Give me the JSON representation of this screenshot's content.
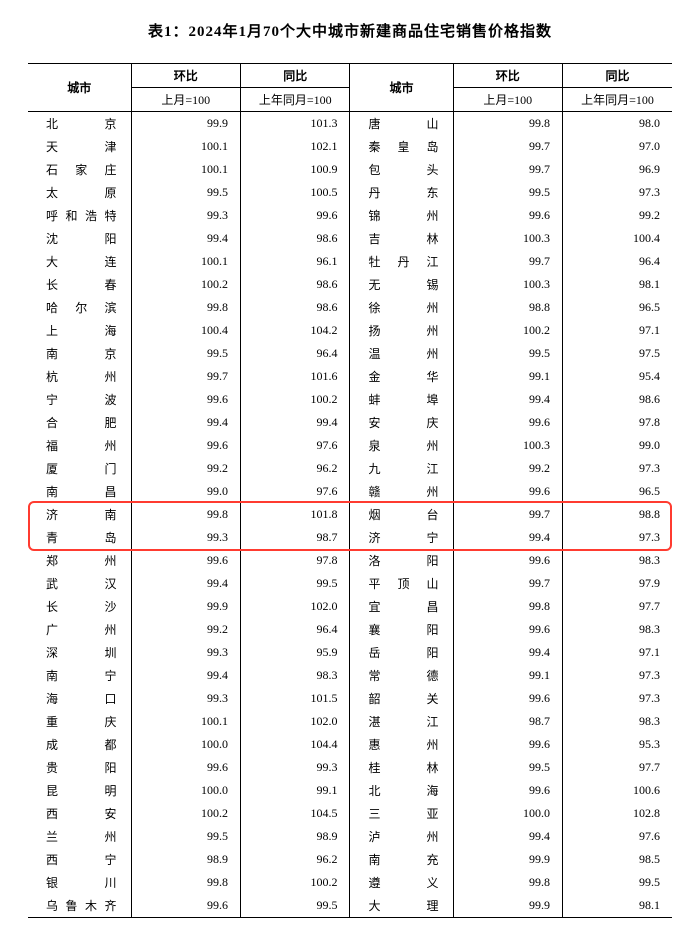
{
  "title": "表1：2024年1月70个大中城市新建商品住宅销售价格指数",
  "headers": {
    "city": "城市",
    "mom": "环比",
    "yoy": "同比",
    "mom_sub": "上月=100",
    "yoy_sub": "上年同月=100"
  },
  "highlight_rows": {
    "start": 17,
    "count": 2
  },
  "rows": [
    {
      "c1": "北　　京",
      "m1": "99.9",
      "y1": "101.3",
      "c2": "唐　　山",
      "m2": "99.8",
      "y2": "98.0"
    },
    {
      "c1": "天　　津",
      "m1": "100.1",
      "y1": "102.1",
      "c2": "秦 皇 岛",
      "m2": "99.7",
      "y2": "97.0"
    },
    {
      "c1": "石 家 庄",
      "m1": "100.1",
      "y1": "100.9",
      "c2": "包　　头",
      "m2": "99.7",
      "y2": "96.9"
    },
    {
      "c1": "太　　原",
      "m1": "99.5",
      "y1": "100.5",
      "c2": "丹　　东",
      "m2": "99.5",
      "y2": "97.3"
    },
    {
      "c1": "呼和浩特",
      "m1": "99.3",
      "y1": "99.6",
      "c2": "锦　　州",
      "m2": "99.6",
      "y2": "99.2"
    },
    {
      "c1": "沈　　阳",
      "m1": "99.4",
      "y1": "98.6",
      "c2": "吉　　林",
      "m2": "100.3",
      "y2": "100.4"
    },
    {
      "c1": "大　　连",
      "m1": "100.1",
      "y1": "96.1",
      "c2": "牡 丹 江",
      "m2": "99.7",
      "y2": "96.4"
    },
    {
      "c1": "长　　春",
      "m1": "100.2",
      "y1": "98.6",
      "c2": "无　　锡",
      "m2": "100.3",
      "y2": "98.1"
    },
    {
      "c1": "哈 尔 滨",
      "m1": "99.8",
      "y1": "98.6",
      "c2": "徐　　州",
      "m2": "98.8",
      "y2": "96.5"
    },
    {
      "c1": "上　　海",
      "m1": "100.4",
      "y1": "104.2",
      "c2": "扬　　州",
      "m2": "100.2",
      "y2": "97.1"
    },
    {
      "c1": "南　　京",
      "m1": "99.5",
      "y1": "96.4",
      "c2": "温　　州",
      "m2": "99.5",
      "y2": "97.5"
    },
    {
      "c1": "杭　　州",
      "m1": "99.7",
      "y1": "101.6",
      "c2": "金　　华",
      "m2": "99.1",
      "y2": "95.4"
    },
    {
      "c1": "宁　　波",
      "m1": "99.6",
      "y1": "100.2",
      "c2": "蚌　　埠",
      "m2": "99.4",
      "y2": "98.6"
    },
    {
      "c1": "合　　肥",
      "m1": "99.4",
      "y1": "99.4",
      "c2": "安　　庆",
      "m2": "99.6",
      "y2": "97.8"
    },
    {
      "c1": "福　　州",
      "m1": "99.6",
      "y1": "97.6",
      "c2": "泉　　州",
      "m2": "100.3",
      "y2": "99.0"
    },
    {
      "c1": "厦　　门",
      "m1": "99.2",
      "y1": "96.2",
      "c2": "九　　江",
      "m2": "99.2",
      "y2": "97.3"
    },
    {
      "c1": "南　　昌",
      "m1": "99.0",
      "y1": "97.6",
      "c2": "赣　　州",
      "m2": "99.6",
      "y2": "96.5"
    },
    {
      "c1": "济　　南",
      "m1": "99.8",
      "y1": "101.8",
      "c2": "烟　　台",
      "m2": "99.7",
      "y2": "98.8"
    },
    {
      "c1": "青　　岛",
      "m1": "99.3",
      "y1": "98.7",
      "c2": "济　　宁",
      "m2": "99.4",
      "y2": "97.3"
    },
    {
      "c1": "郑　　州",
      "m1": "99.6",
      "y1": "97.8",
      "c2": "洛　　阳",
      "m2": "99.6",
      "y2": "98.3"
    },
    {
      "c1": "武　　汉",
      "m1": "99.4",
      "y1": "99.5",
      "c2": "平 顶 山",
      "m2": "99.7",
      "y2": "97.9"
    },
    {
      "c1": "长　　沙",
      "m1": "99.9",
      "y1": "102.0",
      "c2": "宜　　昌",
      "m2": "99.8",
      "y2": "97.7"
    },
    {
      "c1": "广　　州",
      "m1": "99.2",
      "y1": "96.4",
      "c2": "襄　　阳",
      "m2": "99.6",
      "y2": "98.3"
    },
    {
      "c1": "深　　圳",
      "m1": "99.3",
      "y1": "95.9",
      "c2": "岳　　阳",
      "m2": "99.4",
      "y2": "97.1"
    },
    {
      "c1": "南　　宁",
      "m1": "99.4",
      "y1": "98.3",
      "c2": "常　　德",
      "m2": "99.1",
      "y2": "97.3"
    },
    {
      "c1": "海　　口",
      "m1": "99.3",
      "y1": "101.5",
      "c2": "韶　　关",
      "m2": "99.6",
      "y2": "97.3"
    },
    {
      "c1": "重　　庆",
      "m1": "100.1",
      "y1": "102.0",
      "c2": "湛　　江",
      "m2": "98.7",
      "y2": "98.3"
    },
    {
      "c1": "成　　都",
      "m1": "100.0",
      "y1": "104.4",
      "c2": "惠　　州",
      "m2": "99.6",
      "y2": "95.3"
    },
    {
      "c1": "贵　　阳",
      "m1": "99.6",
      "y1": "99.3",
      "c2": "桂　　林",
      "m2": "99.5",
      "y2": "97.7"
    },
    {
      "c1": "昆　　明",
      "m1": "100.0",
      "y1": "99.1",
      "c2": "北　　海",
      "m2": "99.6",
      "y2": "100.6"
    },
    {
      "c1": "西　　安",
      "m1": "100.2",
      "y1": "104.5",
      "c2": "三　　亚",
      "m2": "100.0",
      "y2": "102.8"
    },
    {
      "c1": "兰　　州",
      "m1": "99.5",
      "y1": "98.9",
      "c2": "泸　　州",
      "m2": "99.4",
      "y2": "97.6"
    },
    {
      "c1": "西　　宁",
      "m1": "98.9",
      "y1": "96.2",
      "c2": "南　　充",
      "m2": "99.9",
      "y2": "98.5"
    },
    {
      "c1": "银　　川",
      "m1": "99.8",
      "y1": "100.2",
      "c2": "遵　　义",
      "m2": "99.8",
      "y2": "99.5"
    },
    {
      "c1": "乌鲁木齐",
      "m1": "99.6",
      "y1": "99.5",
      "c2": "大　　理",
      "m2": "99.9",
      "y2": "98.1"
    }
  ]
}
